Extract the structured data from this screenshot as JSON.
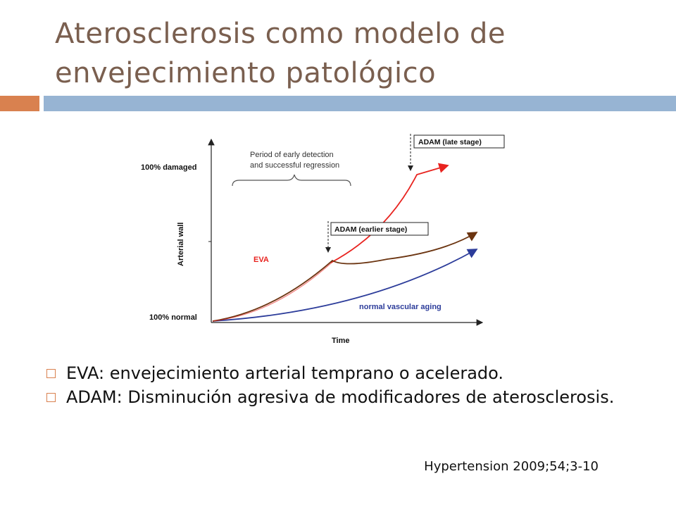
{
  "slide": {
    "title_line1": "Aterosclerosis como modelo de",
    "title_line2": "envejecimiento patológico",
    "accent_colors": {
      "orange": "#d9814f",
      "blue": "#97b4d3",
      "title": "#7a5f4f"
    }
  },
  "figure": {
    "y_axis_label": "Arterial wall",
    "x_axis_label": "Time",
    "y_top_label": "100% damaged",
    "y_bottom_label": "100% normal",
    "brace_label_line1": "Period of early detection",
    "brace_label_line2": "and successful regression",
    "eva_label": "EVA",
    "normal_label": "normal vascular aging",
    "adam_late": "ADAM (late stage)",
    "adam_early": "ADAM (earlier stage)",
    "curve_colors": {
      "red": "#e8231f",
      "brown": "#6b3410",
      "blue": "#2c3c9a"
    }
  },
  "bullets": [
    "EVA: envejecimiento arterial temprano o acelerado.",
    "ADAM: Disminución agresiva de modificadores de aterosclerosis."
  ],
  "reference": "Hypertension 2009;54;3-10"
}
